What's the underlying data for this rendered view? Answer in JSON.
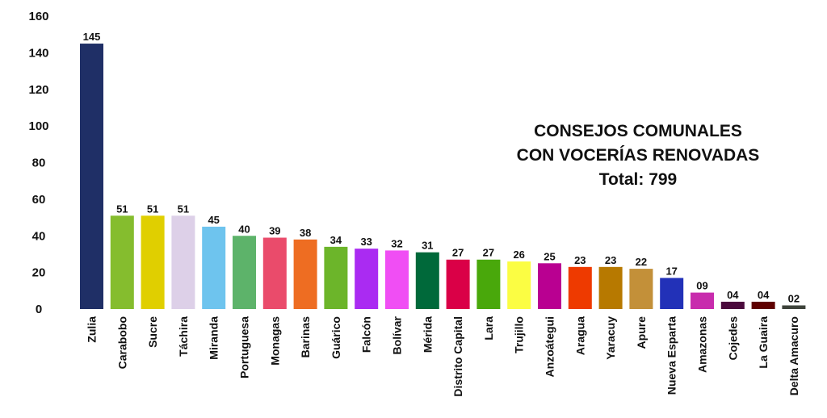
{
  "chart_data": {
    "type": "bar",
    "title_lines": [
      "CONSEJOS COMUNALES",
      "CON VOCERÍAS RENOVADAS"
    ],
    "total_label": "Total: 799",
    "ylim": [
      0,
      160
    ],
    "yticks": [
      "0",
      "20",
      "40",
      "60",
      "80",
      "100",
      "120",
      "140",
      "160"
    ],
    "grid": false,
    "legend": "none",
    "categories": [
      "Zulia",
      "Carabobo",
      "Sucre",
      "Táchira",
      "Miranda",
      "Portuguesa",
      "Monagas",
      "Barinas",
      "Guárico",
      "Falcón",
      "Bolívar",
      "Mérida",
      "Distrito Capital",
      "Lara",
      "Trujillo",
      "Anzoátegui",
      "Aragua",
      "Yaracuy",
      "Apure",
      "Nueva Esparta",
      "Amazonas",
      "Cojedes",
      "La Guaira",
      "Delta Amacuro"
    ],
    "values": [
      145,
      51,
      51,
      51,
      45,
      40,
      39,
      38,
      34,
      33,
      32,
      31,
      27,
      27,
      26,
      25,
      23,
      23,
      22,
      17,
      9,
      4,
      4,
      2
    ],
    "value_labels": [
      "145",
      "51",
      "51",
      "51",
      "45",
      "40",
      "39",
      "38",
      "34",
      "33",
      "32",
      "31",
      "27",
      "27",
      "26",
      "25",
      "23",
      "23",
      "22",
      "17",
      "09",
      "04",
      "04",
      "02"
    ],
    "colors": [
      "#1f2f66",
      "#85bd2e",
      "#e0cf00",
      "#ddd0e8",
      "#6ec4ee",
      "#5db36a",
      "#ea4b6b",
      "#ee6d22",
      "#6cb52a",
      "#aa2bf2",
      "#f04ef4",
      "#00693a",
      "#da0047",
      "#49a80b",
      "#fbfd43",
      "#b90091",
      "#ee3a00",
      "#b77900",
      "#c39039",
      "#2231b8",
      "#c82cad",
      "#4b0a3d",
      "#5f0000",
      "#3e433b"
    ]
  }
}
